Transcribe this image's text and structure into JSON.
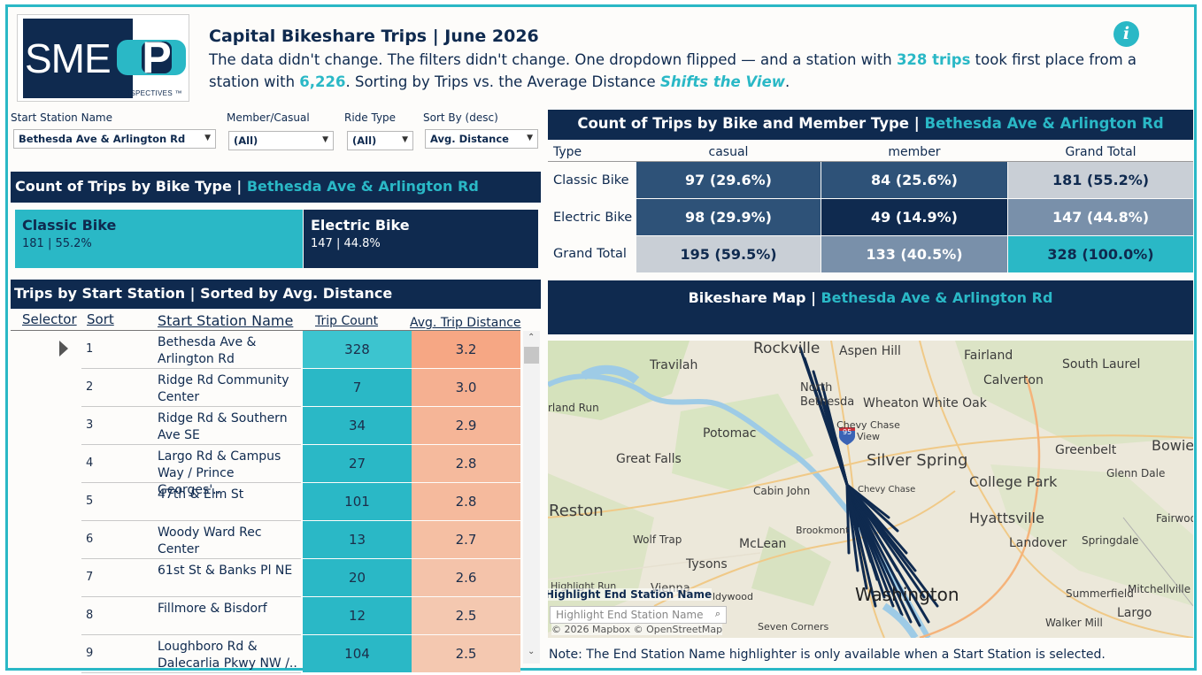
{
  "header": {
    "title": "Capital Bikeshare Trips | June 2026",
    "subtitle_1": "The data didn't change. The filters didn't change. One dropdown flipped — and a station with ",
    "subtitle_hl1": "328 trips",
    "subtitle_2": " took first place from a station with ",
    "subtitle_hl2": "6,226",
    "subtitle_3": ".  Sorting by Trips vs. the Average Distance ",
    "subtitle_hl3": "Shifts the View",
    "subtitle_4": "."
  },
  "logo": {
    "text": "SME",
    "glyph": "P",
    "tagline": "PERSPECTIVES ™"
  },
  "info_icon": {
    "icon": "info-icon",
    "glyph": "i"
  },
  "filters": {
    "start_station": {
      "label": "Start Station Name",
      "value": "Bethesda Ave & Arlington Rd"
    },
    "member_casual": {
      "label": "Member/Casual",
      "value": "(All)"
    },
    "ride_type": {
      "label": "Ride Type",
      "value": "(All)"
    },
    "sort_by": {
      "label": "Sort By (desc)",
      "value": "Avg. Distance"
    }
  },
  "bike_type": {
    "title": "Count of Trips by Bike Type | ",
    "station": "Bethesda Ave & Arlington Rd",
    "cards": [
      {
        "label": "Classic Bike",
        "value": "181 | 55.2%"
      },
      {
        "label": "Electric Bike",
        "value": "147 | 44.8%"
      }
    ]
  },
  "station_table": {
    "title": "Trips by Start Station | Sorted by Avg. Distance",
    "columns": [
      "Selector",
      "Sort",
      "Start Station Name",
      "Trip Count",
      "Avg. Trip Distance"
    ],
    "rows": [
      {
        "sort": "1",
        "name": "Bethesda Ave & Arlington Rd",
        "count": "328",
        "dist": "3.2"
      },
      {
        "sort": "2",
        "name": "Ridge Rd Community Center",
        "count": "7",
        "dist": "3.0"
      },
      {
        "sort": "3",
        "name": "Ridge Rd & Southern Ave SE",
        "count": "34",
        "dist": "2.9"
      },
      {
        "sort": "4",
        "name": "Largo Rd & Campus Way / Prince Georges'..",
        "count": "27",
        "dist": "2.8"
      },
      {
        "sort": "5",
        "name": "47th & Elm St",
        "count": "101",
        "dist": "2.8"
      },
      {
        "sort": "6",
        "name": "Woody Ward Rec Center",
        "count": "13",
        "dist": "2.7"
      },
      {
        "sort": "7",
        "name": "61st St & Banks Pl NE",
        "count": "20",
        "dist": "2.6"
      },
      {
        "sort": "8",
        "name": "Fillmore & Bisdorf",
        "count": "12",
        "dist": "2.5"
      },
      {
        "sort": "9",
        "name": "Loughboro Rd & Dalecarlia Pkwy NW /..",
        "count": "104",
        "dist": "2.5"
      }
    ]
  },
  "matrix": {
    "title": "Count of Trips by Bike and Member Type | ",
    "station": "Bethesda Ave & Arlington Rd",
    "col_headers": [
      "Type",
      "casual",
      "member",
      "Grand Total"
    ],
    "rows": [
      {
        "label": "Classic Bike",
        "cells": [
          "97 (29.6%)",
          "84 (25.6%)",
          "181 (55.2%)"
        ]
      },
      {
        "label": "Electric Bike",
        "cells": [
          "98 (29.9%)",
          "49 (14.9%)",
          "147 (44.8%)"
        ]
      },
      {
        "label": "Grand Total",
        "cells": [
          "195 (59.5%)",
          "133 (40.5%)",
          "328 (100.0%)"
        ]
      }
    ]
  },
  "map": {
    "title": "Bikeshare Map | ",
    "station": "Bethesda Ave & Arlington Rd",
    "places": [
      "Rockville",
      "Aspen Hill",
      "Fairland",
      "South Laurel",
      "Travilah",
      "Calverton",
      "North Bethesda",
      "Wheaton",
      "White Oak",
      "rland Run",
      "Chevy Chase View",
      "Potomac",
      "95",
      "Bowie",
      "Great Falls",
      "Silver Spring",
      "Greenbelt",
      "College Park",
      "Glenn Dale",
      "Cabin John",
      "Chevy Chase",
      "Reston",
      "Hyattsville",
      "Fairwoo",
      "Brookmont",
      "Wolf Trap",
      "McLean",
      "Landover",
      "Springdale",
      "Tysons",
      "Highlight Run",
      "Vienna",
      "Summerfield",
      "Mitchellville",
      "Washington",
      "Largo",
      "Seven Corners",
      "Walker Mill",
      "ldywood"
    ],
    "highlight_label": "Highlight End Station Name",
    "highlight_placeholder": "Highlight End Station Name",
    "attribution": "© 2026 Mapbox © OpenStreetMap",
    "note": "Note:  The End Station Name highlighter is only available when a Start Station is selected."
  },
  "colors": {
    "navy": "#0f2a4f",
    "teal": "#2ab8c6",
    "salmon_high": "#f6a784",
    "salmon_low": "#f4c8b0"
  }
}
